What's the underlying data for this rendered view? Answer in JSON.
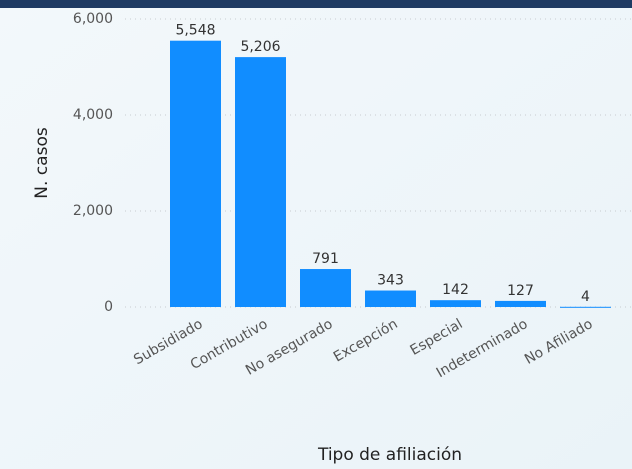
{
  "chart_data": {
    "type": "bar",
    "y_label": "N. casos",
    "x_label": "Tipo de afiliación",
    "categories": [
      "Subsidiado",
      "Contributivo",
      "No asegurado",
      "Excepción",
      "Especial",
      "Indeterminado",
      "No Afiliado"
    ],
    "values": [
      5548,
      5206,
      791,
      343,
      142,
      127,
      4
    ],
    "value_labels": [
      "5,548",
      "5,206",
      "791",
      "343",
      "142",
      "127",
      "4"
    ],
    "color": "#118dff",
    "ylim": [
      0,
      6000
    ],
    "yticks": [
      0,
      {
        "value": 2000,
        "label": "2,000"
      },
      {
        "value": 4000,
        "label": "4,000"
      },
      {
        "value": 6000,
        "label": "6,000"
      }
    ],
    "grid": true
  }
}
